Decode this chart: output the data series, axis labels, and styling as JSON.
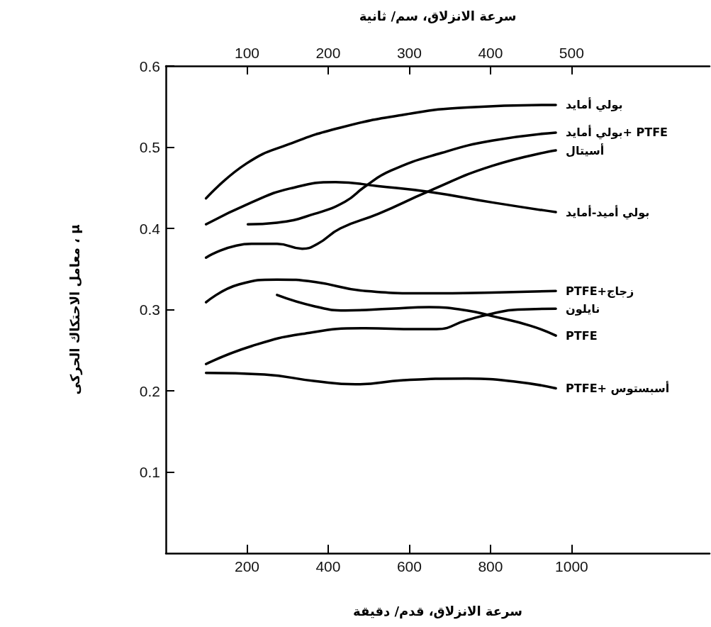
{
  "chart_data": {
    "type": "line",
    "xlabel": "سرعة الانزلاق، قدم/ دقيقة",
    "x2label": "سرعة الانزلاق، سم/ ثانية",
    "ylabel": "معامل الاحتكاك الحركى ، μ",
    "xlim": [
      0,
      1340
    ],
    "xticks": [
      200,
      400,
      600,
      800,
      1000
    ],
    "x2lim": [
      0,
      670
    ],
    "x2ticks": [
      100,
      200,
      300,
      400,
      500
    ],
    "ylim": [
      0,
      0.6
    ],
    "yticks": [
      0.1,
      0.2,
      0.3,
      0.4,
      0.5,
      0.6
    ],
    "marker": "none",
    "line_style": "solid",
    "series": [
      {
        "name": "بولي أمايد",
        "color": "#000000",
        "x": [
          99,
          199,
          305,
          430,
          586,
          742,
          961
        ],
        "values": [
          0.437,
          0.48,
          0.504,
          0.524,
          0.54,
          0.549,
          0.552
        ]
      },
      {
        "name": "بولي أمايد+ PTFE",
        "color": "#000000",
        "x": [
          202,
          274,
          367,
          442,
          492,
          554,
          680,
          804,
          961
        ],
        "values": [
          0.405,
          0.407,
          0.418,
          0.433,
          0.452,
          0.471,
          0.493,
          0.508,
          0.518
        ]
      },
      {
        "name": "أسيتال",
        "color": "#000000",
        "x": [
          99,
          211,
          274,
          336,
          374,
          430,
          524,
          649,
          804,
          961
        ],
        "values": [
          0.364,
          0.381,
          0.381,
          0.375,
          0.381,
          0.4,
          0.418,
          0.446,
          0.477,
          0.496
        ]
      },
      {
        "name": "بولي أميد-أمايد",
        "color": "#000000",
        "x": [
          99,
          211,
          305,
          418,
          524,
          649,
          804,
          961
        ],
        "values": [
          0.405,
          0.432,
          0.449,
          0.457,
          0.452,
          0.445,
          0.432,
          0.42
        ]
      },
      {
        "name": "PTFE+زجاج",
        "color": "#000000",
        "x": [
          99,
          180,
          274,
          367,
          492,
          649,
          804,
          961
        ],
        "values": [
          0.309,
          0.331,
          0.337,
          0.334,
          0.323,
          0.32,
          0.321,
          0.323
        ]
      },
      {
        "name": "نايلون",
        "color": "#000000",
        "x": [
          99,
          211,
          336,
          492,
          617,
          667,
          742,
          804,
          867,
          961
        ],
        "values": [
          0.233,
          0.255,
          0.27,
          0.277,
          0.276,
          0.276,
          0.287,
          0.295,
          0.3,
          0.301
        ]
      },
      {
        "name": "PTFE",
        "color": "#000000",
        "x": [
          274,
          367,
          442,
          554,
          649,
          742,
          804,
          899,
          961
        ],
        "values": [
          0.318,
          0.304,
          0.299,
          0.301,
          0.303,
          0.299,
          0.292,
          0.28,
          0.268
        ]
      },
      {
        "name": "PTFE+ أسبستوس",
        "color": "#000000",
        "x": [
          99,
          243,
          367,
          467,
          586,
          742,
          867,
          961
        ],
        "values": [
          0.222,
          0.22,
          0.212,
          0.208,
          0.213,
          0.215,
          0.211,
          0.203
        ]
      }
    ]
  }
}
